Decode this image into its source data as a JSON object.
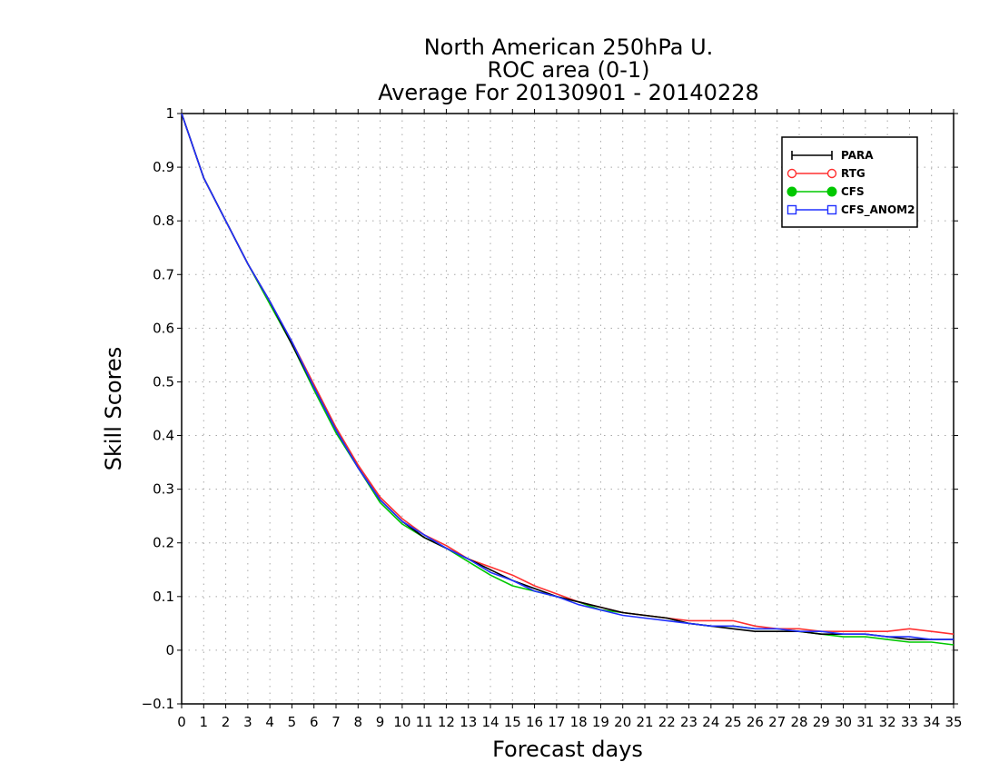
{
  "chart_data": {
    "type": "line",
    "title_lines": [
      "North American 250hPa U.",
      "ROC area (0-1)",
      "Average For 20130901 - 20140228"
    ],
    "xlabel": "Forecast days",
    "ylabel": "Skill Scores",
    "xlim": [
      0,
      35
    ],
    "ylim": [
      -0.1,
      1
    ],
    "xticks": [
      0,
      1,
      2,
      3,
      4,
      5,
      6,
      7,
      8,
      9,
      10,
      11,
      12,
      13,
      14,
      15,
      16,
      17,
      18,
      19,
      20,
      21,
      22,
      23,
      24,
      25,
      26,
      27,
      28,
      29,
      30,
      31,
      32,
      33,
      34,
      35
    ],
    "yticks": [
      -0.1,
      0,
      0.1,
      0.2,
      0.3,
      0.4,
      0.5,
      0.6,
      0.7,
      0.8,
      0.9,
      1
    ],
    "ytick_labels": [
      "−0.1",
      "0",
      "0.1",
      "0.2",
      "0.3",
      "0.4",
      "0.5",
      "0.6",
      "0.7",
      "0.8",
      "0.9",
      "1"
    ],
    "grid": true,
    "legend_position": "top-right",
    "x": [
      0,
      1,
      2,
      3,
      4,
      5,
      6,
      7,
      8,
      9,
      10,
      11,
      12,
      13,
      14,
      15,
      16,
      17,
      18,
      19,
      20,
      21,
      22,
      23,
      24,
      25,
      26,
      27,
      28,
      29,
      30,
      31,
      32,
      33,
      34,
      35
    ],
    "series": [
      {
        "name": "PARA",
        "color": "#000000",
        "marker": "plus",
        "values": [
          1.0,
          0.88,
          0.8,
          0.72,
          0.65,
          0.57,
          0.49,
          0.41,
          0.34,
          0.28,
          0.24,
          0.21,
          0.19,
          0.17,
          0.15,
          0.13,
          0.115,
          0.1,
          0.09,
          0.08,
          0.07,
          0.065,
          0.06,
          0.05,
          0.045,
          0.04,
          0.035,
          0.035,
          0.035,
          0.03,
          0.03,
          0.03,
          0.025,
          0.02,
          0.02,
          0.02
        ]
      },
      {
        "name": "RTG",
        "color": "#ff3030",
        "marker": "circle-open",
        "values": [
          1.0,
          0.88,
          0.8,
          0.72,
          0.65,
          0.575,
          0.495,
          0.415,
          0.345,
          0.285,
          0.245,
          0.215,
          0.195,
          0.17,
          0.155,
          0.14,
          0.12,
          0.105,
          0.09,
          0.08,
          0.07,
          0.065,
          0.06,
          0.055,
          0.055,
          0.055,
          0.045,
          0.04,
          0.04,
          0.035,
          0.035,
          0.035,
          0.035,
          0.04,
          0.035,
          0.03
        ]
      },
      {
        "name": "CFS",
        "color": "#00c800",
        "marker": "circle-filled",
        "values": [
          1.0,
          0.88,
          0.8,
          0.72,
          0.645,
          0.57,
          0.485,
          0.405,
          0.34,
          0.275,
          0.235,
          0.21,
          0.19,
          0.165,
          0.14,
          0.12,
          0.11,
          0.1,
          0.09,
          0.075,
          0.07,
          0.065,
          0.06,
          0.05,
          0.045,
          0.045,
          0.04,
          0.04,
          0.035,
          0.03,
          0.025,
          0.025,
          0.02,
          0.015,
          0.015,
          0.01
        ]
      },
      {
        "name": "CFS_ANOM2",
        "color": "#2030ff",
        "marker": "square-open",
        "values": [
          1.0,
          0.88,
          0.8,
          0.72,
          0.65,
          0.575,
          0.49,
          0.41,
          0.34,
          0.28,
          0.24,
          0.215,
          0.19,
          0.17,
          0.145,
          0.13,
          0.11,
          0.1,
          0.085,
          0.075,
          0.065,
          0.06,
          0.055,
          0.05,
          0.045,
          0.045,
          0.04,
          0.04,
          0.035,
          0.035,
          0.03,
          0.03,
          0.025,
          0.025,
          0.02,
          0.02
        ]
      }
    ]
  }
}
